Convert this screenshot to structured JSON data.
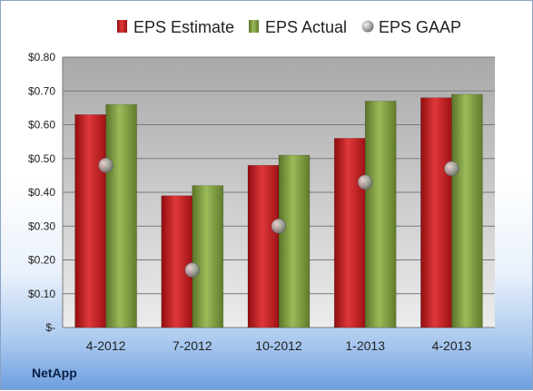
{
  "company": "NetApp",
  "chart_data": {
    "type": "bar",
    "categories": [
      "4-2012",
      "7-2012",
      "10-2012",
      "1-2013",
      "4-2013"
    ],
    "series": [
      {
        "name": "EPS Estimate",
        "kind": "bar",
        "color": "#c0171c",
        "values": [
          0.63,
          0.39,
          0.48,
          0.56,
          0.68
        ]
      },
      {
        "name": "EPS Actual",
        "kind": "bar",
        "color": "#7f9c3c",
        "values": [
          0.66,
          0.42,
          0.51,
          0.67,
          0.69
        ]
      },
      {
        "name": "EPS GAAP",
        "kind": "scatter",
        "color": "#a9a9a9",
        "values": [
          0.48,
          0.17,
          0.3,
          0.43,
          0.47
        ]
      }
    ],
    "ylim": [
      0,
      0.8
    ],
    "yticks": [
      {
        "value": 0.8,
        "label": "$0.80"
      },
      {
        "value": 0.7,
        "label": "$0.70"
      },
      {
        "value": 0.6,
        "label": "$0.60"
      },
      {
        "value": 0.5,
        "label": "$0.50"
      },
      {
        "value": 0.4,
        "label": "$0.40"
      },
      {
        "value": 0.3,
        "label": "$0.30"
      },
      {
        "value": 0.2,
        "label": "$0.20"
      },
      {
        "value": 0.1,
        "label": "$0.10"
      },
      {
        "value": 0,
        "label": "$-"
      }
    ],
    "grid": true,
    "legend": "top"
  }
}
